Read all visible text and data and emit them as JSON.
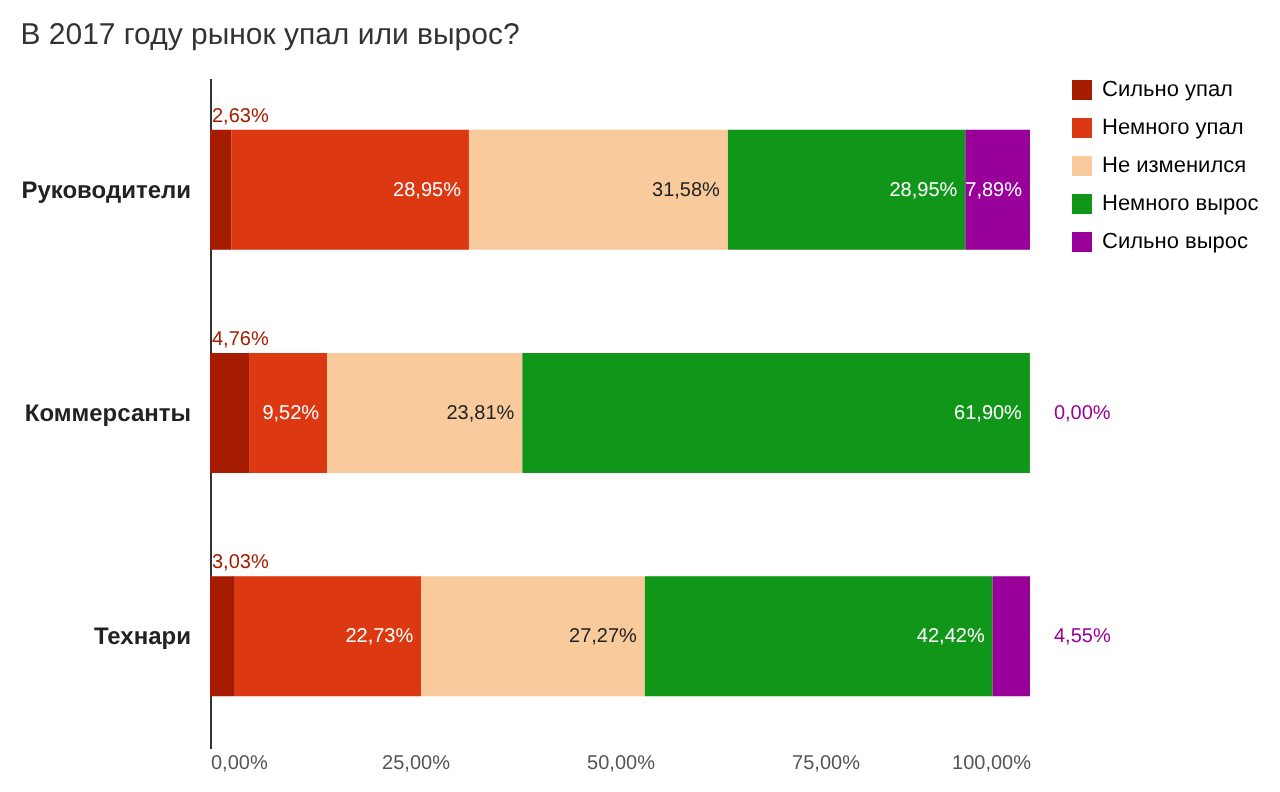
{
  "chart_data": {
    "type": "bar",
    "orientation": "horizontal",
    "stacked": true,
    "title": "В 2017 году рынок упал или вырос?",
    "categories": [
      "Руководители",
      "Коммерсанты",
      "Технари"
    ],
    "series": [
      {
        "name": "Сильно упал",
        "color": "#a61c00",
        "values": [
          2.63,
          4.76,
          3.03
        ],
        "value_labels": [
          "2,63%",
          "4,76%",
          "3,03%"
        ]
      },
      {
        "name": "Немного упал",
        "color": "#dc3912",
        "values": [
          28.95,
          9.52,
          22.73
        ],
        "value_labels": [
          "28,95%",
          "9,52%",
          "22,73%"
        ]
      },
      {
        "name": "Не изменился",
        "color": "#f9cb9c",
        "values": [
          31.58,
          23.81,
          27.27
        ],
        "value_labels": [
          "31,58%",
          "23,81%",
          "27,27%"
        ]
      },
      {
        "name": "Немного вырос",
        "color": "#109618",
        "values": [
          28.95,
          61.9,
          42.42
        ],
        "value_labels": [
          "28,95%",
          "61,90%",
          "42,42%"
        ]
      },
      {
        "name": "Сильно вырос",
        "color": "#990099",
        "values": [
          7.89,
          0,
          4.55
        ],
        "value_labels": [
          "7,89%",
          "0,00%",
          "4,55%"
        ]
      }
    ],
    "xlim": [
      0,
      100
    ],
    "xticks": [
      {
        "value": 0,
        "label": "0,00%"
      },
      {
        "value": 25,
        "label": "25,00%"
      },
      {
        "value": 50,
        "label": "50,00%"
      },
      {
        "value": 75,
        "label": "75,00%"
      },
      {
        "value": 100,
        "label": "100,00%"
      }
    ],
    "legend": "top right",
    "grid": false
  }
}
